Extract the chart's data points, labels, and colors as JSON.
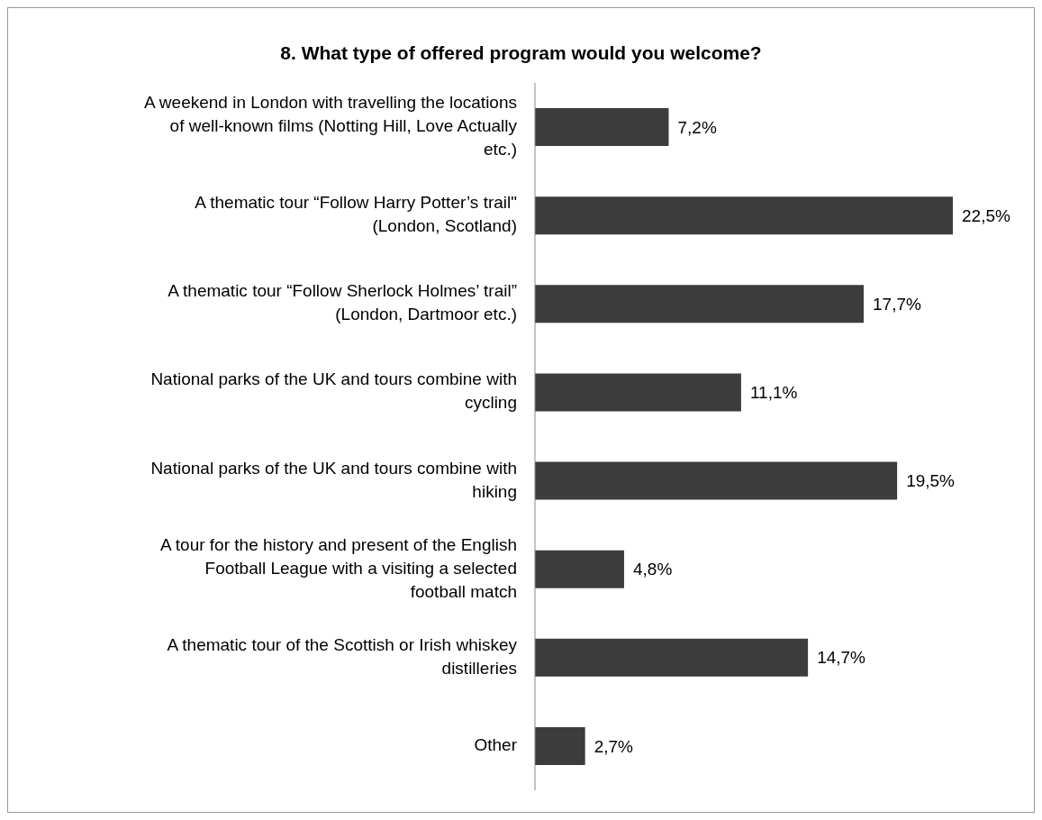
{
  "chart_data": {
    "type": "bar",
    "orientation": "horizontal",
    "title": "8. What type of offered program would you welcome?",
    "categories": [
      "A weekend in London with travelling the locations of well-known films (Notting Hill, Love Actually etc.)",
      "A thematic tour “Follow Harry Potter’s trail\" (London, Scotland)",
      "A thematic tour “Follow Sherlock Holmes’ trail” (London, Dartmoor etc.)",
      "National parks of the UK and tours combine with cycling",
      "National parks of the UK and tours combine with hiking",
      "A tour for the history and present of the English Football League with a visiting a selected football match",
      "A thematic tour of the Scottish or Irish whiskey distilleries",
      "Other"
    ],
    "values": [
      7.2,
      22.5,
      17.7,
      11.1,
      19.5,
      4.8,
      14.7,
      2.7
    ],
    "value_labels": [
      "7,2%",
      "22,5%",
      "17,7%",
      "11,1%",
      "19,5%",
      "4,8%",
      "14,7%",
      "2,7%"
    ],
    "color": "#3c3c3c"
  }
}
